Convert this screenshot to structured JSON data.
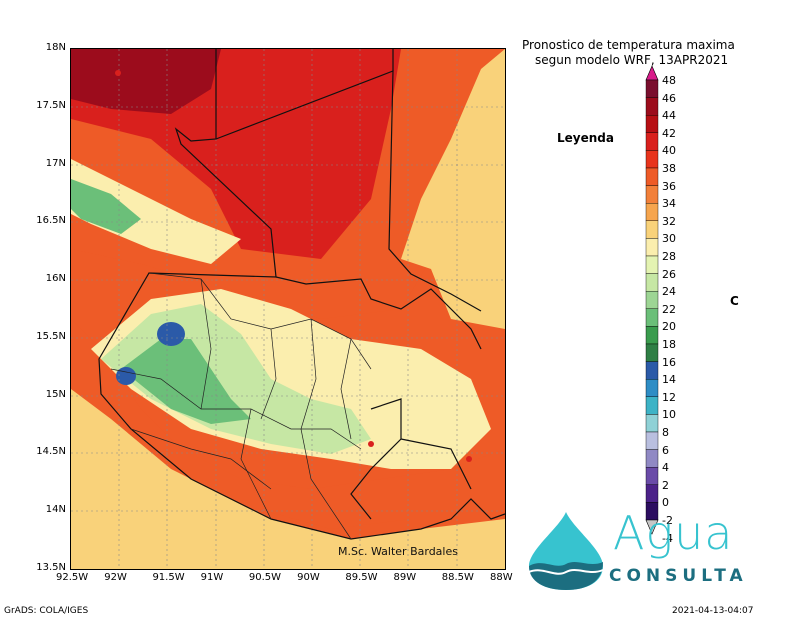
{
  "title": {
    "line1": "Pronostico de temperatura maxima",
    "line2": "segun modelo WRF, 13APR2021"
  },
  "legend": {
    "heading": "Leyenda",
    "unit": "C",
    "values": [
      "48",
      "46",
      "44",
      "42",
      "40",
      "38",
      "36",
      "34",
      "32",
      "30",
      "28",
      "26",
      "24",
      "22",
      "20",
      "18",
      "16",
      "14",
      "12",
      "10",
      "8",
      "6",
      "4",
      "2",
      "0",
      "-2",
      "-4"
    ],
    "colors": [
      "#c2186e",
      "#7a0f2e",
      "#9c0c1c",
      "#b70f14",
      "#d9201d",
      "#e8341c",
      "#ee5b27",
      "#f2803a",
      "#f6a54e",
      "#f9d27a",
      "#fbeeae",
      "#e4f3b2",
      "#c6e7a4",
      "#9dd594",
      "#6bbf79",
      "#3a9c4e",
      "#2f7f45",
      "#2b5aa8",
      "#2e8dc5",
      "#3db3c6",
      "#8fd1d6",
      "#b9bfdf",
      "#9089c4",
      "#6a4ba8",
      "#4c2289",
      "#2c0d60",
      "#3a1470"
    ],
    "arrow_top_color": "#d81b8a",
    "arrow_bottom_color": "#c6c6c6"
  },
  "axes": {
    "y_ticks": [
      "18N",
      "17.5N",
      "17N",
      "16.5N",
      "16N",
      "15.5N",
      "15N",
      "14.5N",
      "14N",
      "13.5N"
    ],
    "x_ticks": [
      "92.5W",
      "92W",
      "91.5W",
      "91W",
      "90.5W",
      "90W",
      "89.5W",
      "89W",
      "88.5W",
      "88W"
    ]
  },
  "signature": "M.Sc. Walter Bardales",
  "footer": {
    "left": "GrADS: COLA/IGES",
    "right": "2021-04-13-04:07"
  },
  "logo": {
    "word1": "Agua",
    "word2": "CONSULTA",
    "drop_color": "#37c3cf",
    "dark_color": "#1c6e80"
  },
  "map_colors": {
    "hot_dark": "#9c0c1c",
    "hot": "#d9201d",
    "warm": "#ee5b27",
    "mild": "#f6a54e",
    "pale": "#f9d27a",
    "cool_pale": "#fbeeae",
    "green_light": "#c6e7a4",
    "green": "#6bbf79",
    "green_dark": "#2f7f45",
    "blue": "#2b5aa8"
  }
}
